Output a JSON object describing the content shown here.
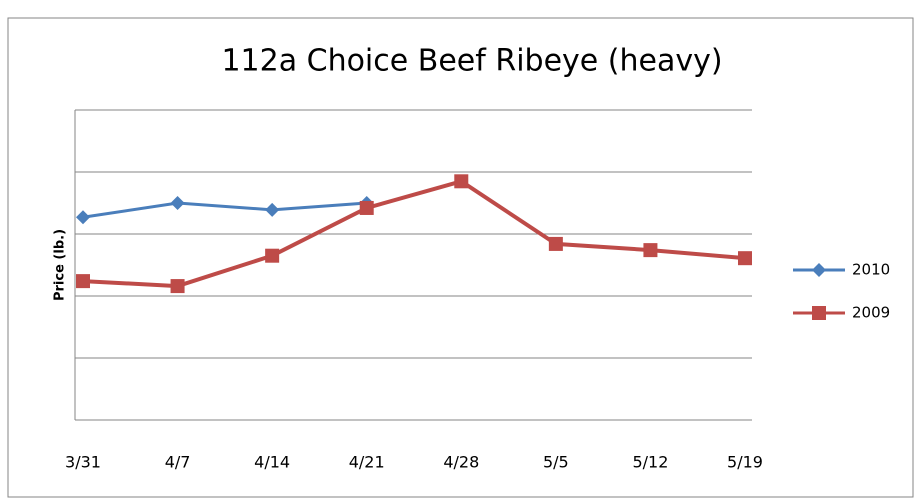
{
  "chart_data": {
    "type": "line",
    "title": "112a Choice Beef Ribeye (heavy)",
    "y_label": "Price (lb.)",
    "categories": [
      "3/31",
      "4/7",
      "4/14",
      "4/21",
      "4/28",
      "5/5",
      "5/12",
      "5/19"
    ],
    "series": [
      {
        "name": "2010",
        "color": "#4a7ebb",
        "marker": "diamond",
        "values": [
          3.27,
          3.5,
          3.39,
          3.5,
          null,
          null,
          null,
          null
        ]
      },
      {
        "name": "2009",
        "color": "#be4b48",
        "marker": "square",
        "values": [
          2.24,
          2.16,
          2.65,
          3.42,
          3.85,
          2.84,
          2.74,
          2.61
        ]
      }
    ],
    "ylim": [
      0,
      5
    ],
    "yticks": [
      0,
      1,
      2,
      3,
      4,
      5
    ],
    "grid": true,
    "legend": "right"
  }
}
